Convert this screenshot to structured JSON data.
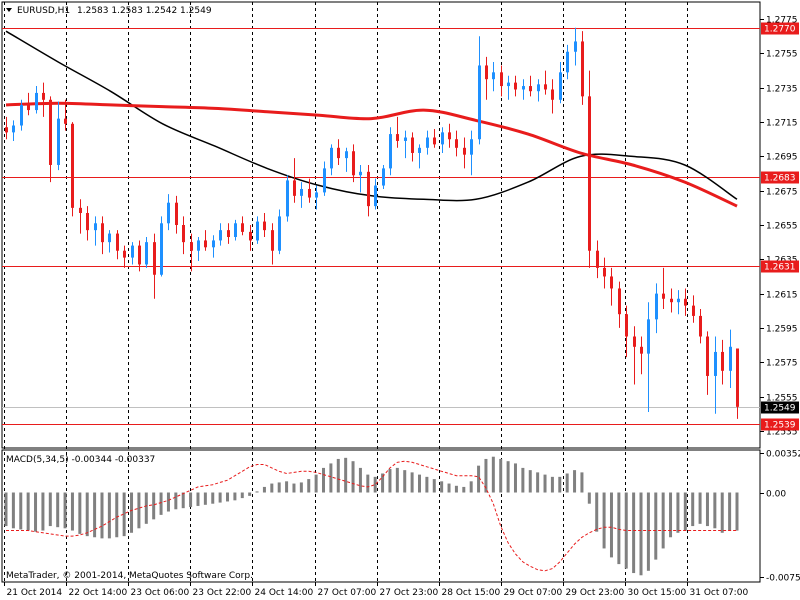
{
  "header": {
    "symbol": "EURUSD,H1",
    "ohlc": "1.2583 1.2583 1.2542 1.2549"
  },
  "macd_label": "MACD(5,34,5) -0.00344 -0.00337",
  "copyright": "MetaTrader, © 2001-2014, MetaQuotes Software Corp.",
  "colors": {
    "bull": "#1e90ff",
    "bear": "#e81c1c",
    "ma_slow": "#e81c1c",
    "ma_fast": "#000000",
    "level_line": "#e81c1c",
    "macd_hist": "#808080",
    "macd_signal": "#e81c1c",
    "grid": "#000000"
  },
  "chart_data": [
    {
      "type": "candlestick",
      "symbol": "EURUSD",
      "timeframe": "H1",
      "y_ticks": [
        "1.2775",
        "1.2755",
        "1.2735",
        "1.2715",
        "1.2695",
        "1.2675",
        "1.2655",
        "1.2635",
        "1.2615",
        "1.2595",
        "1.2575",
        "1.2555",
        "1.2535"
      ],
      "ylim": [
        1.2525,
        1.2785
      ],
      "x_tick_labels": [
        "21 Oct 2014",
        "22 Oct 14:00",
        "23 Oct 06:00",
        "23 Oct 22:00",
        "24 Oct 14:00",
        "27 Oct 07:00",
        "27 Oct 23:00",
        "28 Oct 15:00",
        "29 Oct 07:00",
        "29 Oct 23:00",
        "30 Oct 15:00",
        "31 Oct 07:00"
      ],
      "level_lines": [
        1.277,
        1.2683,
        1.2631,
        1.2539
      ],
      "current_price": 1.2549,
      "ma_slow": [
        1.2725,
        1.2726,
        1.2725,
        1.2724,
        1.2723,
        1.2721,
        1.2719,
        1.2717,
        1.2722,
        1.2716,
        1.2708,
        1.2697,
        1.269,
        1.268,
        1.2666
      ],
      "ma_fast": [
        1.2768,
        1.275,
        1.2733,
        1.2714,
        1.2701,
        1.2688,
        1.2678,
        1.2672,
        1.267,
        1.267,
        1.268,
        1.2695,
        1.2695,
        1.269,
        1.267
      ],
      "candles": [
        [
          1.2712,
          1.2718,
          1.2705,
          1.2709
        ],
        [
          1.2709,
          1.2716,
          1.2704,
          1.2713
        ],
        [
          1.2713,
          1.2728,
          1.271,
          1.2725
        ],
        [
          1.2725,
          1.2732,
          1.2719,
          1.2722
        ],
        [
          1.2722,
          1.2736,
          1.272,
          1.2732
        ],
        [
          1.2732,
          1.2738,
          1.2718,
          1.2728
        ],
        [
          1.2728,
          1.273,
          1.268,
          1.269
        ],
        [
          1.269,
          1.2727,
          1.2687,
          1.2717
        ],
        [
          1.2717,
          1.2728,
          1.271,
          1.2714
        ],
        [
          1.2714,
          1.2715,
          1.266,
          1.2665
        ],
        [
          1.2665,
          1.267,
          1.265,
          1.2662
        ],
        [
          1.2662,
          1.2666,
          1.2646,
          1.2652
        ],
        [
          1.2652,
          1.266,
          1.2643,
          1.2656
        ],
        [
          1.2656,
          1.266,
          1.2638,
          1.2645
        ],
        [
          1.2645,
          1.2652,
          1.2639,
          1.265
        ],
        [
          1.265,
          1.2652,
          1.2635,
          1.264
        ],
        [
          1.264,
          1.2643,
          1.263,
          1.2636
        ],
        [
          1.2636,
          1.2645,
          1.2632,
          1.2643
        ],
        [
          1.2643,
          1.2646,
          1.2628,
          1.2632
        ],
        [
          1.2632,
          1.2648,
          1.263,
          1.2645
        ],
        [
          1.2645,
          1.265,
          1.2612,
          1.2626
        ],
        [
          1.2626,
          1.266,
          1.2625,
          1.2656
        ],
        [
          1.2656,
          1.2673,
          1.2652,
          1.2668
        ],
        [
          1.2668,
          1.2672,
          1.265,
          1.2655
        ],
        [
          1.2655,
          1.266,
          1.2638,
          1.2645
        ],
        [
          1.2645,
          1.265,
          1.2628,
          1.264
        ],
        [
          1.264,
          1.2648,
          1.2634,
          1.2646
        ],
        [
          1.2646,
          1.2652,
          1.264,
          1.2642
        ],
        [
          1.2642,
          1.2649,
          1.2636,
          1.2646
        ],
        [
          1.2646,
          1.2656,
          1.2643,
          1.2652
        ],
        [
          1.2652,
          1.2656,
          1.2644,
          1.2648
        ],
        [
          1.2648,
          1.2658,
          1.2646,
          1.2656
        ],
        [
          1.2656,
          1.266,
          1.2649,
          1.2651
        ],
        [
          1.2651,
          1.2655,
          1.264,
          1.2646
        ],
        [
          1.2646,
          1.266,
          1.2644,
          1.2657
        ],
        [
          1.2657,
          1.2662,
          1.2648,
          1.2652
        ],
        [
          1.2652,
          1.2656,
          1.2632,
          1.264
        ],
        [
          1.264,
          1.2664,
          1.2638,
          1.266
        ],
        [
          1.266,
          1.2684,
          1.2657,
          1.2681
        ],
        [
          1.2681,
          1.2694,
          1.2668,
          1.2672
        ],
        [
          1.2672,
          1.268,
          1.2665,
          1.2676
        ],
        [
          1.2676,
          1.2682,
          1.2668,
          1.2671
        ],
        [
          1.2671,
          1.2678,
          1.2664,
          1.2674
        ],
        [
          1.2674,
          1.2692,
          1.2672,
          1.2688
        ],
        [
          1.2688,
          1.2702,
          1.2684,
          1.27
        ],
        [
          1.27,
          1.2705,
          1.269,
          1.2694
        ],
        [
          1.2694,
          1.27,
          1.2686,
          1.2698
        ],
        [
          1.2698,
          1.2702,
          1.268,
          1.2684
        ],
        [
          1.2684,
          1.269,
          1.2674,
          1.2686
        ],
        [
          1.2686,
          1.269,
          1.266,
          1.2666
        ],
        [
          1.2666,
          1.2682,
          1.2664,
          1.2678
        ],
        [
          1.2678,
          1.269,
          1.2676,
          1.2688
        ],
        [
          1.2688,
          1.2712,
          1.2684,
          1.2708
        ],
        [
          1.2708,
          1.2718,
          1.27,
          1.2704
        ],
        [
          1.2704,
          1.271,
          1.2694,
          1.2706
        ],
        [
          1.2706,
          1.2709,
          1.2692,
          1.2697
        ],
        [
          1.2697,
          1.2702,
          1.2688,
          1.27
        ],
        [
          1.27,
          1.271,
          1.2696,
          1.2706
        ],
        [
          1.2706,
          1.2711,
          1.27,
          1.2702
        ],
        [
          1.2702,
          1.2712,
          1.2697,
          1.2709
        ],
        [
          1.2709,
          1.2714,
          1.27,
          1.2705
        ],
        [
          1.2705,
          1.271,
          1.2695,
          1.27
        ],
        [
          1.27,
          1.2706,
          1.2688,
          1.2696
        ],
        [
          1.2696,
          1.271,
          1.2684,
          1.2705
        ],
        [
          1.2705,
          1.2765,
          1.2702,
          1.2748
        ],
        [
          1.2748,
          1.2753,
          1.2728,
          1.274
        ],
        [
          1.274,
          1.275,
          1.2733,
          1.2744
        ],
        [
          1.2744,
          1.2748,
          1.273,
          1.2736
        ],
        [
          1.2736,
          1.2742,
          1.2728,
          1.2738
        ],
        [
          1.2738,
          1.2742,
          1.273,
          1.2734
        ],
        [
          1.2734,
          1.274,
          1.2728,
          1.2736
        ],
        [
          1.2736,
          1.2742,
          1.273,
          1.2733
        ],
        [
          1.2733,
          1.274,
          1.2727,
          1.2737
        ],
        [
          1.2737,
          1.2745,
          1.2731,
          1.2734
        ],
        [
          1.2734,
          1.274,
          1.272,
          1.2728
        ],
        [
          1.2728,
          1.275,
          1.2726,
          1.2744
        ],
        [
          1.2744,
          1.276,
          1.274,
          1.2756
        ],
        [
          1.2756,
          1.277,
          1.2748,
          1.2762
        ],
        [
          1.2762,
          1.2768,
          1.2725,
          1.273
        ],
        [
          1.273,
          1.2745,
          1.263,
          1.264
        ],
        [
          1.264,
          1.2646,
          1.2624,
          1.263
        ],
        [
          1.263,
          1.2636,
          1.2618,
          1.2625
        ],
        [
          1.2625,
          1.263,
          1.2608,
          1.2618
        ],
        [
          1.2618,
          1.2622,
          1.2595,
          1.2603
        ],
        [
          1.2603,
          1.2608,
          1.2578,
          1.259
        ],
        [
          1.259,
          1.2596,
          1.2562,
          1.2584
        ],
        [
          1.2584,
          1.259,
          1.2568,
          1.258
        ],
        [
          1.258,
          1.261,
          1.2546,
          1.26
        ],
        [
          1.26,
          1.2621,
          1.2592,
          1.2615
        ],
        [
          1.2615,
          1.263,
          1.2606,
          1.2612
        ],
        [
          1.2612,
          1.2618,
          1.2604,
          1.261
        ],
        [
          1.261,
          1.2617,
          1.2603,
          1.2612
        ],
        [
          1.2612,
          1.2618,
          1.2602,
          1.2608
        ],
        [
          1.2608,
          1.2614,
          1.2598,
          1.2602
        ],
        [
          1.2602,
          1.2606,
          1.2586,
          1.259
        ],
        [
          1.259,
          1.2593,
          1.2556,
          1.2567
        ],
        [
          1.2567,
          1.259,
          1.2545,
          1.2581
        ],
        [
          1.2581,
          1.2588,
          1.2562,
          1.257
        ],
        [
          1.257,
          1.2594,
          1.256,
          1.2584
        ],
        [
          1.2583,
          1.2583,
          1.2542,
          1.2549
        ]
      ]
    },
    {
      "type": "bar",
      "title": "MACD(5,34,5)",
      "y_ticks": [
        "0.00352",
        "0.00",
        "-0.00757"
      ],
      "ylim": [
        -0.008,
        0.0038
      ],
      "values": [
        -0.003,
        -0.0032,
        -0.0033,
        -0.0034,
        -0.0035,
        -0.0034,
        -0.003,
        -0.0031,
        -0.0032,
        -0.0034,
        -0.0037,
        -0.0039,
        -0.004,
        -0.0041,
        -0.0041,
        -0.004,
        -0.0039,
        -0.0036,
        -0.0032,
        -0.0028,
        -0.0024,
        -0.002,
        -0.0017,
        -0.0015,
        -0.0014,
        -0.0013,
        -0.0012,
        -0.0011,
        -0.001,
        -0.0009,
        -0.0008,
        -0.0007,
        -0.0005,
        -0.0003,
        0.0001,
        0.0005,
        0.0008,
        0.0009,
        0.001,
        0.0008,
        0.0009,
        0.0012,
        0.0016,
        0.0022,
        0.0026,
        0.003,
        0.0031,
        0.0028,
        0.0022,
        0.0016,
        0.0014,
        0.0017,
        0.0021,
        0.0022,
        0.002,
        0.0018,
        0.0016,
        0.0014,
        0.0012,
        0.001,
        0.0008,
        0.0006,
        0.0005,
        0.001,
        0.0024,
        0.003,
        0.0032,
        0.003,
        0.0028,
        0.0026,
        0.0022,
        0.002,
        0.0018,
        0.0016,
        0.0014,
        0.0014,
        0.0017,
        0.002,
        0.0018,
        -0.001,
        -0.0035,
        -0.005,
        -0.0058,
        -0.0064,
        -0.0068,
        -0.0072,
        -0.0074,
        -0.007,
        -0.006,
        -0.005,
        -0.004,
        -0.0036,
        -0.0034,
        -0.003,
        -0.0028,
        -0.003,
        -0.0032,
        -0.0036,
        -0.0034,
        -0.0034
      ],
      "signal": [
        -0.0034,
        -0.0034,
        -0.0034,
        -0.0034,
        -0.0035,
        -0.0036,
        -0.0037,
        -0.0038,
        -0.0039,
        -0.0039,
        -0.0038,
        -0.0036,
        -0.0033,
        -0.003,
        -0.0026,
        -0.0022,
        -0.0019,
        -0.0016,
        -0.0014,
        -0.0012,
        -0.0011,
        -0.0009,
        -0.0007,
        -0.0004,
        -0.0001,
        0.0002,
        0.0005,
        0.0006,
        0.0007,
        0.0009,
        0.0011,
        0.0015,
        0.0019,
        0.0023,
        0.0025,
        0.0025,
        0.0022,
        0.0019,
        0.0017,
        0.0018,
        0.0019,
        0.0019,
        0.0018,
        0.0016,
        0.0014,
        0.0012,
        0.001,
        0.0008,
        0.0006,
        0.0005,
        0.0007,
        0.0014,
        0.0022,
        0.0027,
        0.0028,
        0.0027,
        0.0025,
        0.0023,
        0.0021,
        0.0019,
        0.0017,
        0.0015,
        0.0015,
        0.0015,
        0.0014,
        0.0004,
        -0.001,
        -0.003,
        -0.0045,
        -0.0055,
        -0.0062,
        -0.0066,
        -0.0069,
        -0.007,
        -0.0068,
        -0.0062,
        -0.0054,
        -0.0046,
        -0.004,
        -0.0036,
        -0.0033,
        -0.0031,
        -0.0031,
        -0.0033,
        -0.0034,
        -0.0034,
        -0.0034,
        -0.0034,
        -0.0034,
        -0.0034,
        -0.0034,
        -0.0034,
        -0.0034,
        -0.0034,
        -0.0034,
        -0.0034,
        -0.0034,
        -0.0034,
        -0.0034,
        -0.0034
      ]
    }
  ]
}
